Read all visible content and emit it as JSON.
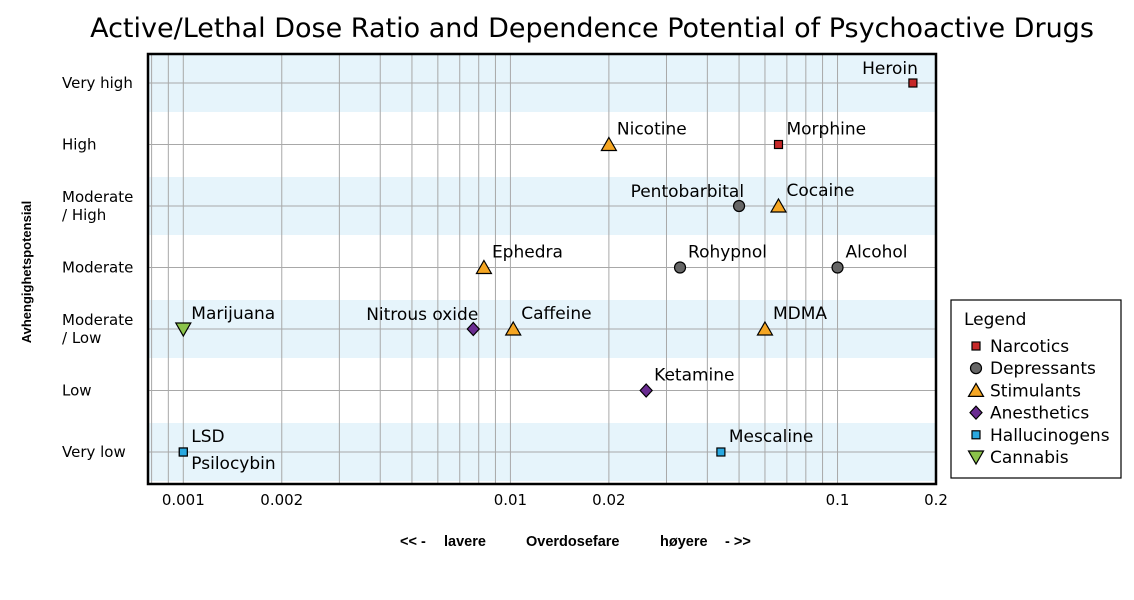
{
  "chart_data": {
    "type": "scatter",
    "title": "Active/Lethal Dose Ratio and Dependence Potential of Psychoactive Drugs",
    "ylabel": "Avhengighetspotensial",
    "xlabel_parts": [
      "<< -",
      "lavere",
      "Overdosefare",
      "høyere",
      "- >>"
    ],
    "x_scale": "log",
    "xlim": [
      0.00078,
      0.2
    ],
    "x_ticks": [
      {
        "value": 0.001,
        "label": "0.001"
      },
      {
        "value": 0.002,
        "label": "0.002"
      },
      {
        "value": 0.01,
        "label": "0.01"
      },
      {
        "value": 0.02,
        "label": "0.02"
      },
      {
        "value": 0.1,
        "label": "0.1"
      },
      {
        "value": 0.2,
        "label": "0.2"
      }
    ],
    "y_categories": [
      "Very low",
      "Low",
      "Moderate / Low",
      "Moderate",
      "Moderate / High",
      "High",
      "Very high"
    ],
    "y_tick_labels": [
      [
        "Very low"
      ],
      [
        "Low"
      ],
      [
        "Moderate",
        "/ Low"
      ],
      [
        "Moderate"
      ],
      [
        "Moderate",
        "/ High"
      ],
      [
        "High"
      ],
      [
        "Very high"
      ]
    ],
    "grid": true,
    "legend_title": "Legend",
    "legend_position": "right",
    "series": [
      {
        "name": "Narcotics",
        "marker": "square-small",
        "color": "#c62828",
        "points": [
          {
            "label": "Heroin",
            "x": 0.17,
            "y": "Very high",
            "label_pos": "upper-left"
          },
          {
            "label": "Morphine",
            "x": 0.066,
            "y": "High",
            "label_pos": "upper-right"
          }
        ]
      },
      {
        "name": "Depressants",
        "marker": "circle",
        "color": "#666666",
        "points": [
          {
            "label": "Pentobarbital",
            "x": 0.05,
            "y": "Moderate / High",
            "label_pos": "upper-left"
          },
          {
            "label": "Rohypnol",
            "x": 0.033,
            "y": "Moderate",
            "label_pos": "upper-right"
          },
          {
            "label": "Alcohol",
            "x": 0.1,
            "y": "Moderate",
            "label_pos": "upper-right"
          }
        ]
      },
      {
        "name": "Stimulants",
        "marker": "triangle-up",
        "color": "#f5a623",
        "points": [
          {
            "label": "Nicotine",
            "x": 0.02,
            "y": "High",
            "label_pos": "upper-right"
          },
          {
            "label": "Cocaine",
            "x": 0.066,
            "y": "Moderate / High",
            "label_pos": "upper-right"
          },
          {
            "label": "Ephedra",
            "x": 0.0083,
            "y": "Moderate",
            "label_pos": "upper-right"
          },
          {
            "label": "Caffeine",
            "x": 0.0102,
            "y": "Moderate / Low",
            "label_pos": "upper-right"
          },
          {
            "label": "MDMA",
            "x": 0.06,
            "y": "Moderate / Low",
            "label_pos": "upper-right"
          }
        ]
      },
      {
        "name": "Anesthetics",
        "marker": "diamond",
        "color": "#6a2c91",
        "points": [
          {
            "label": "Nitrous oxide",
            "x": 0.0077,
            "y": "Moderate / Low",
            "label_pos": "upper-left"
          },
          {
            "label": "Ketamine",
            "x": 0.026,
            "y": "Low",
            "label_pos": "upper-right"
          }
        ]
      },
      {
        "name": "Hallucinogens",
        "marker": "square-small",
        "color": "#29a8e0",
        "points": [
          {
            "label": "LSD",
            "x": 0.001,
            "y": "Very low",
            "label_pos": "upper-right"
          },
          {
            "label": "Psilocybin",
            "x": 0.001,
            "y": "Very low",
            "label_pos": "lower-right"
          },
          {
            "label": "Mescaline",
            "x": 0.044,
            "y": "Very low",
            "label_pos": "upper-right"
          }
        ]
      },
      {
        "name": "Cannabis",
        "marker": "triangle-down",
        "color": "#8bc34a",
        "points": [
          {
            "label": "Marijuana",
            "x": 0.001,
            "y": "Moderate / Low",
            "label_pos": "upper-right"
          }
        ]
      }
    ]
  },
  "colors": {
    "band": "#e6f4fb",
    "grid": "#a8a8a8",
    "frame": "#000000",
    "text": "#000000"
  }
}
